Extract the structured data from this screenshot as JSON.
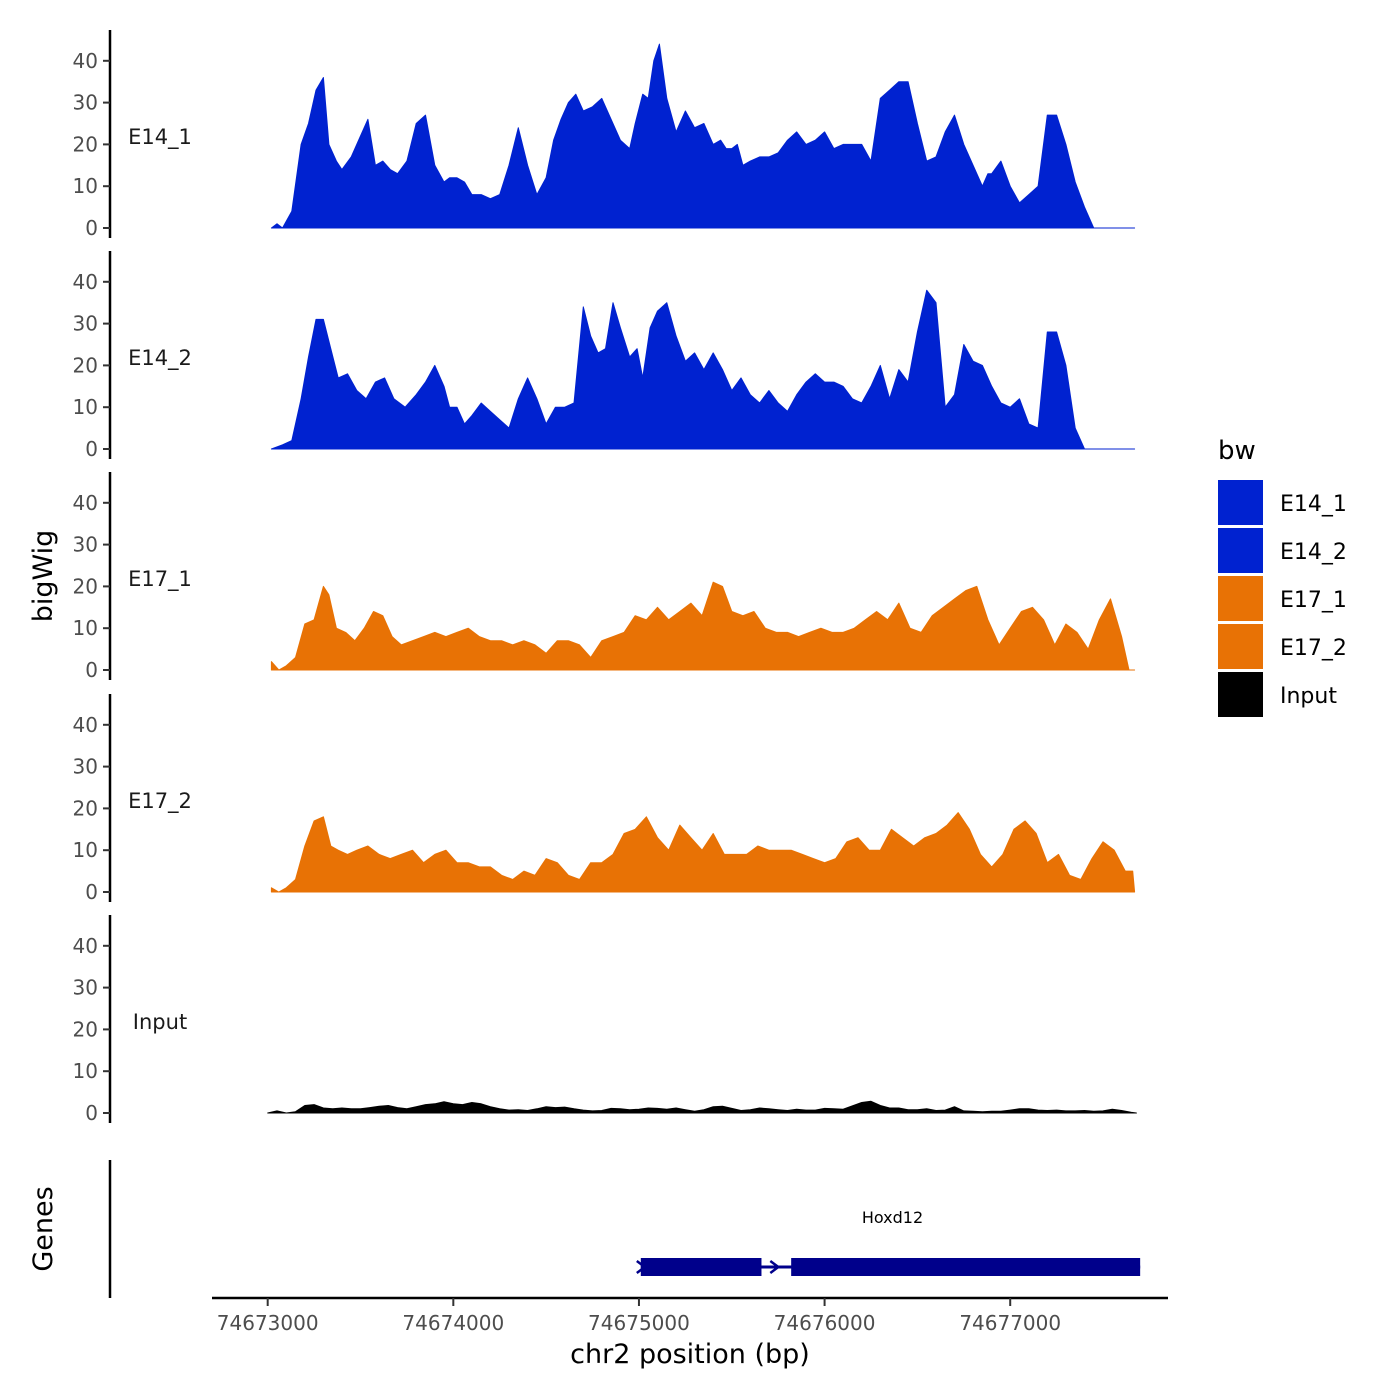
{
  "chart_data": {
    "type": "area",
    "ylabel": "bigWig",
    "xlabel": "chr2 position (bp)",
    "xlim": [
      74672700,
      74677850
    ],
    "ylim": [
      0,
      47
    ],
    "y_ticks": [
      0,
      10,
      20,
      30,
      40
    ],
    "x_ticks": [
      74673000,
      74674000,
      74675000,
      74676000,
      74677000
    ],
    "x_tick_labels": [
      "74673000",
      "74674000",
      "74675000",
      "74676000",
      "74677000"
    ],
    "legend": {
      "title": "bw",
      "position": "right",
      "entries": [
        {
          "label": "E14_1",
          "color": "#0022d0"
        },
        {
          "label": "E14_2",
          "color": "#0022d0"
        },
        {
          "label": "E17_1",
          "color": "#e87205"
        },
        {
          "label": "E17_2",
          "color": "#e87205"
        },
        {
          "label": "Input",
          "color": "#000000"
        }
      ]
    },
    "series": [
      {
        "name": "E14_1",
        "color": "#0022d0",
        "x": [
          74673020,
          74673050,
          74673080,
          74673130,
          74673180,
          74673220,
          74673260,
          74673300,
          74673330,
          74673370,
          74673400,
          74673450,
          74673500,
          74673540,
          74673580,
          74673620,
          74673660,
          74673700,
          74673750,
          74673800,
          74673850,
          74673900,
          74673950,
          74673980,
          74674020,
          74674060,
          74674100,
          74674150,
          74674200,
          74674250,
          74674300,
          74674350,
          74674400,
          74674450,
          74674500,
          74674540,
          74674580,
          74674620,
          74674660,
          74674700,
          74674750,
          74674800,
          74674850,
          74674900,
          74674950,
          74674980,
          74675020,
          74675050,
          74675080,
          74675110,
          74675150,
          74675200,
          74675250,
          74675300,
          74675350,
          74675400,
          74675440,
          74675470,
          74675500,
          74675530,
          74675560,
          74675600,
          74675650,
          74675700,
          74675750,
          74675800,
          74675850,
          74675900,
          74675950,
          74676000,
          74676050,
          74676100,
          74676150,
          74676200,
          74676250,
          74676300,
          74676350,
          74676400,
          74676450,
          74676500,
          74676550,
          74676600,
          74676650,
          74676700,
          74676750,
          74676800,
          74676850,
          74676880,
          74676900,
          74676950,
          74677000,
          74677050,
          74677100,
          74677150,
          74677200,
          74677250,
          74677300,
          74677350,
          74677400,
          74677450,
          74677500,
          74677550,
          74677600,
          74677640,
          74677670
        ],
        "y": [
          0,
          1,
          0,
          4,
          20,
          25,
          33,
          36,
          20,
          16,
          14,
          17,
          22,
          26,
          15,
          16,
          14,
          13,
          16,
          25,
          27,
          15,
          11,
          12,
          12,
          11,
          8,
          8,
          7,
          8,
          15,
          24,
          15,
          8,
          12,
          21,
          26,
          30,
          32,
          28,
          29,
          31,
          26,
          21,
          19,
          25,
          32,
          31,
          40,
          44,
          31,
          23,
          28,
          24,
          25,
          20,
          21,
          19,
          19,
          20,
          15,
          16,
          17,
          17,
          18,
          21,
          23,
          20,
          21,
          23,
          19,
          20,
          20,
          20,
          16,
          31,
          33,
          35,
          35,
          25,
          16,
          17,
          23,
          27,
          20,
          15,
          10,
          13,
          13,
          16,
          10,
          6,
          8,
          10,
          27,
          27,
          20,
          11,
          5,
          0,
          0,
          0,
          0,
          0,
          0
        ],
        "note": "values are the track heights"
      },
      {
        "name": "E14_2",
        "color": "#0022d0",
        "x": [
          74673020,
          74673080,
          74673130,
          74673180,
          74673220,
          74673260,
          74673300,
          74673340,
          74673380,
          74673430,
          74673480,
          74673530,
          74673580,
          74673630,
          74673680,
          74673740,
          74673800,
          74673850,
          74673900,
          74673950,
          74673980,
          74674020,
          74674060,
          74674100,
          74674150,
          74674200,
          74674250,
          74674300,
          74674350,
          74674400,
          74674450,
          74674500,
          74674550,
          74674600,
          74674650,
          74674700,
          74674740,
          74674780,
          74674820,
          74674860,
          74674900,
          74674950,
          74674990,
          74675020,
          74675060,
          74675100,
          74675150,
          74675200,
          74675250,
          74675300,
          74675350,
          74675400,
          74675450,
          74675500,
          74675550,
          74675600,
          74675650,
          74675700,
          74675750,
          74675800,
          74675850,
          74675900,
          74675950,
          74676000,
          74676050,
          74676100,
          74676150,
          74676200,
          74676250,
          74676300,
          74676350,
          74676400,
          74676450,
          74676500,
          74676550,
          74676600,
          74676650,
          74676700,
          74676750,
          74676800,
          74676850,
          74676900,
          74676950,
          74677000,
          74677050,
          74677100,
          74677150,
          74677200,
          74677250,
          74677300,
          74677350,
          74677400,
          74677450,
          74677500,
          74677550,
          74677600,
          74677640,
          74677670
        ],
        "y": [
          0,
          1,
          2,
          12,
          22,
          31,
          31,
          24,
          17,
          18,
          14,
          12,
          16,
          17,
          12,
          10,
          13,
          16,
          20,
          15,
          10,
          10,
          6,
          8,
          11,
          9,
          7,
          5,
          12,
          17,
          12,
          6,
          10,
          10,
          11,
          34,
          27,
          23,
          24,
          35,
          29,
          22,
          24,
          17,
          29,
          33,
          35,
          27,
          21,
          23,
          19,
          23,
          19,
          14,
          17,
          13,
          11,
          14,
          11,
          9,
          13,
          16,
          18,
          16,
          16,
          15,
          12,
          11,
          15,
          20,
          12,
          19,
          16,
          28,
          38,
          35,
          10,
          13,
          25,
          21,
          20,
          15,
          11,
          10,
          12,
          6,
          5,
          28,
          28,
          20,
          5,
          0,
          0,
          0,
          0,
          0,
          0,
          0
        ],
        "note": "values are the track heights"
      },
      {
        "name": "E17_1",
        "color": "#e87205",
        "x": [
          74673020,
          74673060,
          74673100,
          74673150,
          74673200,
          74673250,
          74673300,
          74673330,
          74673370,
          74673420,
          74673470,
          74673520,
          74673570,
          74673620,
          74673670,
          74673720,
          74673780,
          74673840,
          74673900,
          74673960,
          74674020,
          74674080,
          74674140,
          74674200,
          74674260,
          74674320,
          74674380,
          74674440,
          74674500,
          74674560,
          74674620,
          74674680,
          74674740,
          74674800,
          74674860,
          74674920,
          74674980,
          74675040,
          74675100,
          74675160,
          74675220,
          74675280,
          74675340,
          74675400,
          74675450,
          74675500,
          74675560,
          74675620,
          74675680,
          74675740,
          74675800,
          74675860,
          74675920,
          74675980,
          74676040,
          74676100,
          74676160,
          74676220,
          74676280,
          74676340,
          74676400,
          74676460,
          74676520,
          74676580,
          74676640,
          74676700,
          74676760,
          74676820,
          74676880,
          74676940,
          74677000,
          74677060,
          74677120,
          74677180,
          74677240,
          74677300,
          74677360,
          74677420,
          74677480,
          74677540,
          74677600,
          74677640,
          74677670
        ],
        "y": [
          2,
          0,
          1,
          3,
          11,
          12,
          20,
          18,
          10,
          9,
          7,
          10,
          14,
          13,
          8,
          6,
          7,
          8,
          9,
          8,
          9,
          10,
          8,
          7,
          7,
          6,
          7,
          6,
          4,
          7,
          7,
          6,
          3,
          7,
          8,
          9,
          13,
          12,
          15,
          12,
          14,
          16,
          13,
          21,
          20,
          14,
          13,
          14,
          10,
          9,
          9,
          8,
          9,
          10,
          9,
          9,
          10,
          12,
          14,
          12,
          16,
          10,
          9,
          13,
          15,
          17,
          19,
          20,
          12,
          6,
          10,
          14,
          15,
          12,
          6,
          11,
          9,
          5,
          12,
          17,
          8,
          0,
          0
        ],
        "note": "values are the track heights"
      },
      {
        "name": "E17_2",
        "color": "#e87205",
        "x": [
          74673020,
          74673060,
          74673100,
          74673150,
          74673200,
          74673250,
          74673300,
          74673340,
          74673380,
          74673430,
          74673480,
          74673540,
          74673600,
          74673660,
          74673720,
          74673780,
          74673840,
          74673900,
          74673960,
          74674020,
          74674080,
          74674140,
          74674200,
          74674260,
          74674320,
          74674380,
          74674440,
          74674500,
          74674560,
          74674620,
          74674680,
          74674740,
          74674800,
          74674860,
          74674920,
          74674980,
          74675040,
          74675100,
          74675160,
          74675220,
          74675280,
          74675340,
          74675400,
          74675460,
          74675520,
          74675580,
          74675640,
          74675700,
          74675760,
          74675820,
          74675880,
          74675940,
          74676000,
          74676060,
          74676120,
          74676180,
          74676240,
          74676300,
          74676360,
          74676420,
          74676480,
          74676540,
          74676600,
          74676660,
          74676720,
          74676780,
          74676840,
          74676900,
          74676960,
          74677020,
          74677080,
          74677140,
          74677200,
          74677260,
          74677320,
          74677380,
          74677440,
          74677500,
          74677560,
          74677620,
          74677660,
          74677670
        ],
        "y": [
          1,
          0,
          1,
          3,
          11,
          17,
          18,
          11,
          10,
          9,
          10,
          11,
          9,
          8,
          9,
          10,
          7,
          9,
          10,
          7,
          7,
          6,
          6,
          4,
          3,
          5,
          4,
          8,
          7,
          4,
          3,
          7,
          7,
          9,
          14,
          15,
          18,
          13,
          10,
          16,
          13,
          10,
          14,
          9,
          9,
          9,
          11,
          10,
          10,
          10,
          9,
          8,
          7,
          8,
          12,
          13,
          10,
          10,
          15,
          13,
          11,
          13,
          14,
          16,
          19,
          15,
          9,
          6,
          9,
          15,
          17,
          14,
          7,
          9,
          4,
          3,
          8,
          12,
          10,
          5,
          5,
          0
        ],
        "note": "values are the track heights"
      },
      {
        "name": "Input",
        "color": "#000000",
        "x": [
          74673000,
          74673050,
          74673100,
          74673150,
          74673200,
          74673250,
          74673300,
          74673350,
          74673400,
          74673450,
          74673500,
          74673550,
          74673600,
          74673650,
          74673700,
          74673750,
          74673800,
          74673850,
          74673900,
          74673950,
          74674000,
          74674050,
          74674100,
          74674150,
          74674200,
          74674250,
          74674300,
          74674350,
          74674400,
          74674450,
          74674500,
          74674550,
          74674600,
          74674650,
          74674700,
          74674750,
          74674800,
          74674850,
          74674900,
          74674950,
          74675000,
          74675050,
          74675100,
          74675150,
          74675200,
          74675250,
          74675300,
          74675350,
          74675400,
          74675450,
          74675500,
          74675550,
          74675600,
          74675650,
          74675700,
          74675750,
          74675800,
          74675850,
          74675900,
          74675950,
          74676000,
          74676050,
          74676100,
          74676150,
          74676200,
          74676250,
          74676300,
          74676350,
          74676400,
          74676450,
          74676500,
          74676550,
          74676600,
          74676650,
          74676700,
          74676750,
          74676800,
          74676850,
          74676900,
          74676950,
          74677000,
          74677050,
          74677100,
          74677150,
          74677200,
          74677250,
          74677300,
          74677350,
          74677400,
          74677450,
          74677500,
          74677550,
          74677600,
          74677650,
          74677680
        ],
        "y": [
          0,
          0.5,
          0,
          0.3,
          1.8,
          2,
          1.2,
          1,
          1.2,
          1,
          1,
          1.3,
          1.6,
          1.8,
          1.3,
          1,
          1.5,
          2,
          2.2,
          2.7,
          2.2,
          2,
          2.5,
          2.2,
          1.5,
          1,
          0.7,
          0.8,
          0.6,
          1,
          1.5,
          1.3,
          1.4,
          1,
          0.7,
          0.5,
          0.6,
          1.1,
          1,
          0.8,
          0.9,
          1.2,
          1.1,
          0.9,
          1.2,
          0.8,
          0.4,
          0.8,
          1.5,
          1.6,
          1.1,
          0.6,
          0.8,
          1.2,
          1,
          0.8,
          0.6,
          0.9,
          0.7,
          0.7,
          1.1,
          1,
          0.9,
          1.7,
          2.5,
          2.8,
          1.8,
          1.2,
          1.2,
          0.8,
          0.8,
          1,
          0.6,
          0.7,
          1.5,
          0.5,
          0.4,
          0.3,
          0.4,
          0.4,
          0.7,
          1,
          1,
          0.7,
          0.6,
          0.7,
          0.5,
          0.5,
          0.6,
          0.4,
          0.5,
          0.9,
          0.6,
          0.2,
          0
        ],
        "note": "values are the track heights"
      }
    ],
    "genes_track": {
      "label": "Genes",
      "color": "#00008b",
      "gene": {
        "name": "Hoxd12",
        "start": 74675010,
        "end": 74677700
      },
      "exons": [
        {
          "start": 74675010,
          "end": 74675660
        },
        {
          "start": 74675820,
          "end": 74677700
        }
      ]
    }
  }
}
